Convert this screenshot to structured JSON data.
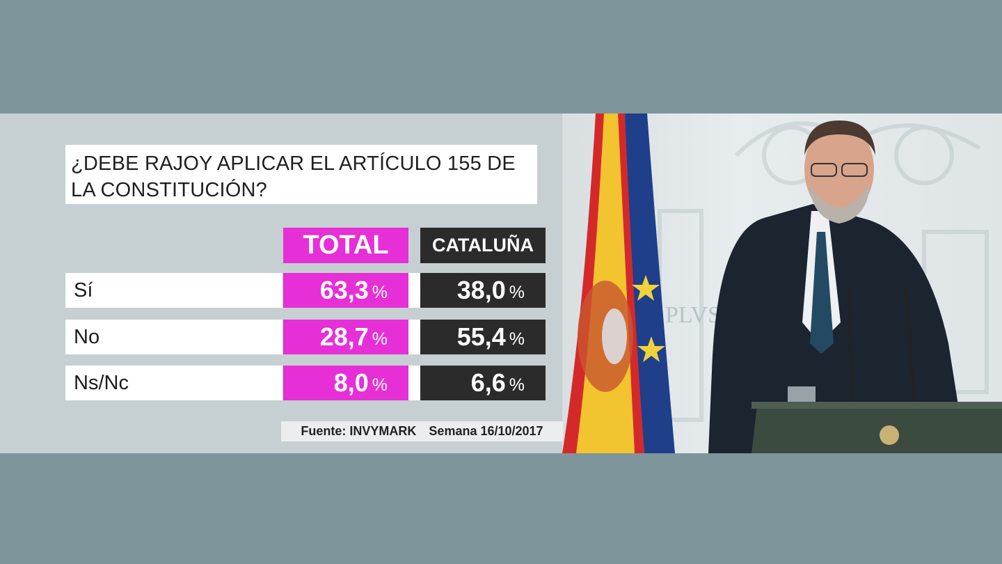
{
  "question": {
    "line1": "¿DEBE RAJOY APLICAR EL ARTÍCULO 155 DE",
    "line2": "LA CONSTITUCIÓN?"
  },
  "columns": [
    "TOTAL",
    "CATALUÑA"
  ],
  "percent_symbol": "%",
  "rows": [
    {
      "label": "Sí",
      "total": "63,3",
      "cataluna": "38,0"
    },
    {
      "label": "No",
      "total": "28,7",
      "cataluna": "55,4"
    },
    {
      "label": "Ns/Nc",
      "total": "8,0",
      "cataluna": "6,6"
    }
  ],
  "source": {
    "name": "Fuente: INVYMARK",
    "week": "Semana 16/10/2017"
  },
  "colors": {
    "total": "#e62fd7",
    "cataluna": "#2b2b2b",
    "background": "#7f959c"
  },
  "chart_data": {
    "type": "table",
    "title": "¿DEBE RAJOY APLICAR EL ARTÍCULO 155 DE LA CONSTITUCIÓN?",
    "categories": [
      "Sí",
      "No",
      "Ns/Nc"
    ],
    "series": [
      {
        "name": "TOTAL",
        "values": [
          63.3,
          28.7,
          8.0
        ]
      },
      {
        "name": "CATALUÑA",
        "values": [
          38.0,
          55.4,
          6.6
        ]
      }
    ]
  },
  "photo": {
    "description_icons": [
      "spain-flag-icon",
      "eu-flag-icon",
      "coat-of-arms-icon",
      "speaker-at-podium-icon",
      "microphone-icon"
    ]
  }
}
